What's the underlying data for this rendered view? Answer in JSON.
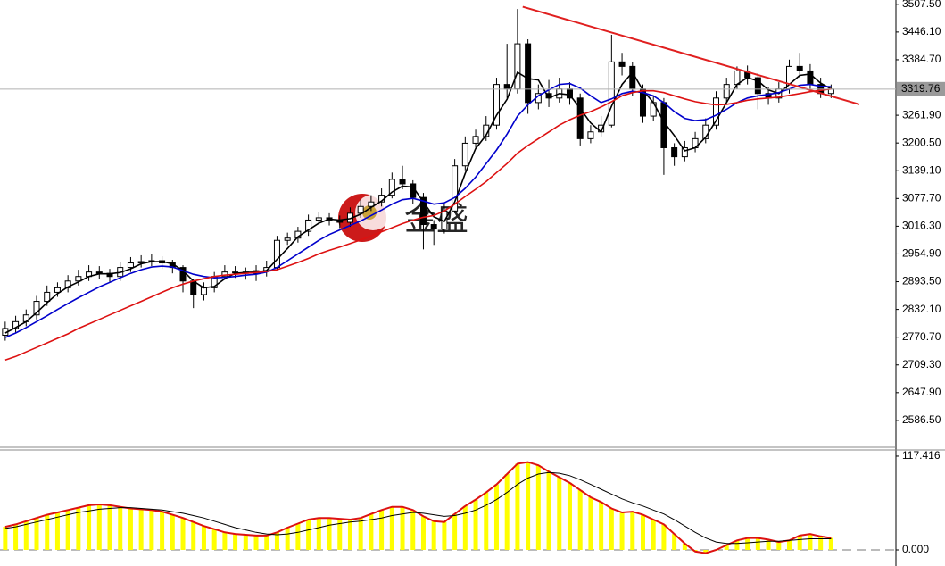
{
  "chart_data": [
    {
      "type": "candlestick",
      "watermark": "金盛",
      "xlim": [
        -0.5,
        85.2
      ],
      "ylim": [
        2529,
        3517
      ],
      "yticks": [
        {
          "value": 3507.5,
          "label": "3507.50"
        },
        {
          "value": 3446.1,
          "label": "3446.10"
        },
        {
          "value": 3384.7,
          "label": "3384.70"
        },
        {
          "value": 3261.9,
          "label": "3261.90"
        },
        {
          "value": 3200.5,
          "label": "3200.50"
        },
        {
          "value": 3139.1,
          "label": "3139.10"
        },
        {
          "value": 3077.7,
          "label": "3077.70"
        },
        {
          "value": 3016.3,
          "label": "3016.30"
        },
        {
          "value": 2954.9,
          "label": "2954.90"
        },
        {
          "value": 2893.5,
          "label": "2893.50"
        },
        {
          "value": 2832.1,
          "label": "2832.10"
        },
        {
          "value": 2770.7,
          "label": "2770.70"
        },
        {
          "value": 2709.3,
          "label": "2709.30"
        },
        {
          "value": 2647.9,
          "label": "2647.90"
        },
        {
          "value": 2586.5,
          "label": "2586.50"
        }
      ],
      "current_price": 3319.76,
      "up_color": "#ffffff",
      "down_color": "#000000",
      "open": [
        2775,
        2790,
        2805,
        2820,
        2850,
        2870,
        2880,
        2895,
        2905,
        2915,
        2912,
        2905,
        2925,
        2935,
        2938,
        2940,
        2935,
        2925,
        2895,
        2865,
        2880,
        2905,
        2915,
        2915,
        2912,
        2918,
        2925,
        2985,
        2990,
        3005,
        3030,
        3035,
        3030,
        3025,
        3045,
        3060,
        3070,
        3085,
        3120,
        3110,
        3080,
        3020,
        3010,
        3050,
        3150,
        3200,
        3215,
        3240,
        3330,
        3320,
        3420,
        3290,
        3310,
        3300,
        3320,
        3300,
        3210,
        3225,
        3240,
        3380,
        3370,
        3320,
        3260,
        3290,
        3190,
        3170,
        3190,
        3210,
        3240,
        3300,
        3330,
        3360,
        3345,
        3310,
        3300,
        3320,
        3370,
        3360,
        3330,
        3310
      ],
      "high": [
        2805,
        2818,
        2832,
        2862,
        2885,
        2892,
        2908,
        2920,
        2930,
        2928,
        2922,
        2938,
        2948,
        2952,
        2955,
        2950,
        2942,
        2930,
        2900,
        2892,
        2915,
        2930,
        2928,
        2925,
        2930,
        2940,
        2995,
        3002,
        3015,
        3042,
        3048,
        3045,
        3040,
        3058,
        3075,
        3085,
        3100,
        3135,
        3150,
        3118,
        3090,
        3030,
        3065,
        3165,
        3215,
        3230,
        3260,
        3345,
        3420,
        3497,
        3430,
        3330,
        3340,
        3345,
        3335,
        3310,
        3240,
        3260,
        3440,
        3400,
        3380,
        3330,
        3305,
        3300,
        3200,
        3205,
        3225,
        3255,
        3315,
        3345,
        3370,
        3372,
        3355,
        3325,
        3335,
        3385,
        3400,
        3375,
        3345,
        3330
      ],
      "low": [
        2763,
        2780,
        2795,
        2810,
        2840,
        2860,
        2870,
        2885,
        2895,
        2900,
        2893,
        2895,
        2915,
        2925,
        2928,
        2922,
        2912,
        2870,
        2835,
        2852,
        2870,
        2898,
        2902,
        2898,
        2895,
        2905,
        2920,
        2975,
        2980,
        2995,
        3020,
        3018,
        3012,
        3015,
        3035,
        3050,
        3060,
        3078,
        3098,
        3065,
        2965,
        2975,
        3000,
        3045,
        3140,
        3190,
        3205,
        3230,
        3300,
        3310,
        3265,
        3275,
        3280,
        3290,
        3285,
        3195,
        3200,
        3215,
        3235,
        3350,
        3305,
        3245,
        3250,
        3130,
        3150,
        3160,
        3180,
        3200,
        3230,
        3290,
        3320,
        3330,
        3275,
        3285,
        3290,
        3310,
        3345,
        3315,
        3300,
        3300
      ],
      "close": [
        2790,
        2805,
        2820,
        2850,
        2870,
        2880,
        2895,
        2905,
        2915,
        2912,
        2905,
        2925,
        2935,
        2938,
        2940,
        2935,
        2925,
        2895,
        2865,
        2880,
        2905,
        2915,
        2915,
        2912,
        2918,
        2925,
        2985,
        2990,
        3005,
        3030,
        3035,
        3030,
        3025,
        3045,
        3060,
        3070,
        3085,
        3120,
        3110,
        3080,
        3020,
        3010,
        3050,
        3150,
        3200,
        3215,
        3240,
        3330,
        3320,
        3420,
        3290,
        3310,
        3300,
        3320,
        3300,
        3210,
        3225,
        3240,
        3380,
        3370,
        3320,
        3260,
        3290,
        3190,
        3170,
        3190,
        3210,
        3240,
        3300,
        3330,
        3360,
        3345,
        3310,
        3300,
        3320,
        3370,
        3360,
        3330,
        3310,
        3319.76
      ],
      "lines": [
        {
          "color": "#000000",
          "values": [
            2780,
            2792,
            2805,
            2825,
            2847,
            2867,
            2882,
            2893,
            2905,
            2911,
            2911,
            2914,
            2922,
            2933,
            2938,
            2938,
            2933,
            2918,
            2895,
            2880,
            2883,
            2900,
            2912,
            2914,
            2915,
            2918,
            2943,
            2967,
            2993,
            3008,
            3023,
            3032,
            3030,
            3033,
            3043,
            3058,
            3072,
            3092,
            3105,
            3103,
            3070,
            3037,
            3027,
            3070,
            3133,
            3188,
            3218,
            3262,
            3297,
            3357,
            3343,
            3340,
            3300,
            3310,
            3307,
            3277,
            3245,
            3225,
            3282,
            3330,
            3357,
            3317,
            3290,
            3247,
            3217,
            3183,
            3190,
            3213,
            3250,
            3290,
            3330,
            3345,
            3338,
            3318,
            3310,
            3330,
            3350,
            3353,
            3333,
            3320
          ]
        },
        {
          "color": "#0000cc",
          "values": [
            2770,
            2780,
            2792,
            2805,
            2818,
            2832,
            2845,
            2858,
            2870,
            2882,
            2892,
            2902,
            2912,
            2920,
            2926,
            2928,
            2926,
            2918,
            2910,
            2905,
            2902,
            2903,
            2905,
            2908,
            2910,
            2915,
            2925,
            2940,
            2955,
            2970,
            2985,
            2998,
            3008,
            3018,
            3028,
            3040,
            3052,
            3065,
            3075,
            3078,
            3072,
            3065,
            3068,
            3080,
            3100,
            3125,
            3155,
            3185,
            3220,
            3260,
            3285,
            3305,
            3318,
            3330,
            3332,
            3322,
            3305,
            3290,
            3298,
            3310,
            3315,
            3312,
            3305,
            3290,
            3270,
            3255,
            3250,
            3252,
            3262,
            3275,
            3290,
            3300,
            3305,
            3308,
            3312,
            3320,
            3328,
            3330,
            3326,
            3325
          ]
        },
        {
          "color": "#dd1111",
          "values": [
            2720,
            2728,
            2738,
            2748,
            2758,
            2768,
            2778,
            2790,
            2800,
            2810,
            2820,
            2830,
            2840,
            2850,
            2860,
            2870,
            2880,
            2888,
            2895,
            2900,
            2905,
            2908,
            2910,
            2912,
            2914,
            2916,
            2920,
            2928,
            2936,
            2945,
            2955,
            2963,
            2970,
            2978,
            2986,
            2995,
            3004,
            3013,
            3022,
            3030,
            3036,
            3040,
            3050,
            3065,
            3082,
            3098,
            3115,
            3135,
            3155,
            3178,
            3195,
            3210,
            3225,
            3240,
            3252,
            3262,
            3270,
            3280,
            3292,
            3305,
            3312,
            3316,
            3316,
            3312,
            3305,
            3298,
            3292,
            3288,
            3285,
            3286,
            3290,
            3295,
            3298,
            3300,
            3302,
            3306,
            3310,
            3314,
            3317,
            3320
          ]
        }
      ],
      "trendline": {
        "color": "#e02020",
        "x": [
          49.5,
          81.7
        ],
        "y": [
          3502,
          3286
        ]
      }
    },
    {
      "type": "bar",
      "xlim": [
        -0.5,
        85.2
      ],
      "ylim": [
        -6.7,
        125.2
      ],
      "yticks": [
        117.416,
        {
          "value": 0,
          "label": "0.000"
        }
      ],
      "color": "#ffff00",
      "outline_color": "#dd1111",
      "values": [
        29,
        32,
        36,
        40,
        44,
        47,
        50,
        53,
        56,
        57,
        56,
        54,
        52,
        51,
        50,
        48,
        44,
        40,
        35,
        30,
        26,
        22,
        20,
        19,
        18,
        18,
        22,
        28,
        33,
        38,
        40,
        40,
        39,
        38,
        40,
        45,
        50,
        54,
        54,
        50,
        42,
        36,
        35,
        45,
        55,
        63,
        72,
        82,
        95,
        108,
        110,
        106,
        98,
        91,
        84,
        75,
        66,
        60,
        52,
        47,
        48,
        44,
        38,
        32,
        20,
        8,
        -2,
        -4,
        0,
        6,
        12,
        15,
        15,
        13,
        10,
        12,
        18,
        20,
        17,
        15
      ],
      "lines": [
        {
          "color": "#000000",
          "values": [
            27,
            29,
            32,
            35,
            38,
            41,
            44,
            47,
            49,
            51,
            52,
            53,
            53,
            52,
            51,
            50,
            48,
            46,
            43,
            40,
            36,
            32,
            28,
            25,
            22,
            20,
            19,
            20,
            22,
            25,
            28,
            31,
            33,
            35,
            36,
            38,
            40,
            43,
            45,
            47,
            46,
            44,
            42,
            43,
            46,
            50,
            56,
            63,
            72,
            82,
            90,
            95,
            97,
            96,
            93,
            88,
            82,
            76,
            70,
            64,
            59,
            55,
            50,
            45,
            38,
            30,
            22,
            15,
            10,
            8,
            8,
            9,
            10,
            11,
            11,
            12,
            13,
            14,
            14,
            14
          ]
        }
      ]
    }
  ]
}
